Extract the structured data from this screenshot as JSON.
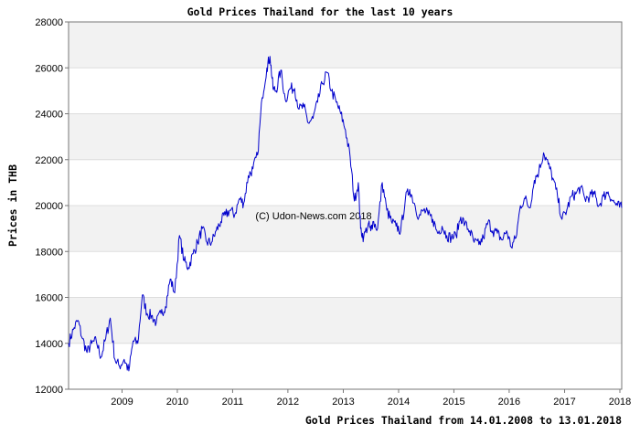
{
  "chart_data": {
    "type": "line",
    "title": "Gold Prices Thailand for the last 10 years",
    "xlabel": "Gold Prices Thailand from 14.01.2008 to 13.01.2018",
    "ylabel": "Prices in THB",
    "watermark": "(C) Udon-News.com 2018",
    "ylim": [
      12000,
      28000
    ],
    "yticks": [
      "12000",
      "14000",
      "16000",
      "18000",
      "20000",
      "22000",
      "24000",
      "26000",
      "28000"
    ],
    "xlim": [
      "2008-01-14",
      "2018-01-13"
    ],
    "xticks": [
      {
        "label": "2009",
        "date": "2009-01-01"
      },
      {
        "label": "2010",
        "date": "2010-01-01"
      },
      {
        "label": "2011",
        "date": "2011-01-01"
      },
      {
        "label": "2012",
        "date": "2012-01-01"
      },
      {
        "label": "2013",
        "date": "2013-01-01"
      },
      {
        "label": "2014",
        "date": "2014-01-01"
      },
      {
        "label": "2015",
        "date": "2015-01-01"
      },
      {
        "label": "2016",
        "date": "2016-01-01"
      },
      {
        "label": "2017",
        "date": "2017-01-01"
      },
      {
        "label": "2018",
        "date": "2018-01-01"
      }
    ],
    "grid": true,
    "line_color": "#0000cc",
    "band_colors": [
      "#f2f2f2",
      "#ffffff"
    ],
    "series": [
      {
        "x": [
          "2008-01-14",
          "2008-02-15",
          "2008-03-15",
          "2008-04-15",
          "2008-05-15",
          "2008-06-15",
          "2008-07-15",
          "2008-08-15",
          "2008-09-15",
          "2008-10-15",
          "2008-11-15",
          "2008-12-15",
          "2009-01-15",
          "2009-02-15",
          "2009-03-15",
          "2009-04-15",
          "2009-05-15",
          "2009-06-15",
          "2009-07-15",
          "2009-08-15",
          "2009-09-15",
          "2009-10-15",
          "2009-11-15",
          "2009-12-15",
          "2010-01-15",
          "2010-02-15",
          "2010-03-15",
          "2010-04-15",
          "2010-05-15",
          "2010-06-15",
          "2010-07-15",
          "2010-08-15",
          "2010-09-15",
          "2010-10-15",
          "2010-11-15",
          "2010-12-15",
          "2011-01-15",
          "2011-02-15",
          "2011-03-15",
          "2011-04-15",
          "2011-05-15",
          "2011-06-15",
          "2011-07-15",
          "2011-08-15",
          "2011-09-05",
          "2011-09-25",
          "2011-10-15",
          "2011-11-15",
          "2011-12-15",
          "2012-01-15",
          "2012-02-15",
          "2012-03-15",
          "2012-04-15",
          "2012-05-15",
          "2012-06-15",
          "2012-07-15",
          "2012-08-15",
          "2012-09-15",
          "2012-10-15",
          "2012-11-15",
          "2012-12-15",
          "2013-01-15",
          "2013-02-15",
          "2013-03-15",
          "2013-04-10",
          "2013-04-25",
          "2013-05-15",
          "2013-06-15",
          "2013-07-01",
          "2013-07-15",
          "2013-08-15",
          "2013-09-15",
          "2013-10-15",
          "2013-11-15",
          "2013-12-15",
          "2014-01-15",
          "2014-02-15",
          "2014-03-15",
          "2014-04-15",
          "2014-05-15",
          "2014-06-15",
          "2014-07-15",
          "2014-08-15",
          "2014-09-15",
          "2014-10-15",
          "2014-11-15",
          "2014-12-15",
          "2015-01-15",
          "2015-02-15",
          "2015-03-15",
          "2015-04-15",
          "2015-05-15",
          "2015-06-15",
          "2015-07-15",
          "2015-08-15",
          "2015-09-15",
          "2015-10-15",
          "2015-11-15",
          "2015-12-15",
          "2016-01-15",
          "2016-02-15",
          "2016-03-15",
          "2016-04-15",
          "2016-05-15",
          "2016-06-15",
          "2016-07-15",
          "2016-08-15",
          "2016-09-15",
          "2016-10-15",
          "2016-11-15",
          "2016-12-15",
          "2017-01-15",
          "2017-02-15",
          "2017-03-15",
          "2017-04-15",
          "2017-05-15",
          "2017-06-15",
          "2017-07-15",
          "2017-08-15",
          "2017-09-15",
          "2017-10-15",
          "2017-11-15",
          "2017-12-15",
          "2018-01-13"
        ],
        "y": [
          14000,
          14600,
          15000,
          14200,
          13600,
          14000,
          14100,
          13400,
          14200,
          15100,
          13300,
          13000,
          13300,
          12800,
          14100,
          14000,
          16100,
          15300,
          15200,
          14900,
          15300,
          15600,
          16800,
          16200,
          18700,
          17600,
          17300,
          17900,
          18400,
          19000,
          18400,
          18400,
          18900,
          19300,
          19600,
          19800,
          19600,
          20300,
          20100,
          21300,
          21600,
          22200,
          24700,
          26000,
          26500,
          25100,
          25000,
          25900,
          24600,
          25100,
          25100,
          24200,
          24300,
          23600,
          23800,
          24500,
          25300,
          25800,
          25000,
          24500,
          24000,
          23300,
          22100,
          20200,
          21000,
          19000,
          18600,
          19200,
          18900,
          19300,
          19000,
          21000,
          19800,
          19300,
          19100,
          18900,
          20300,
          20700,
          20100,
          19500,
          19800,
          19600,
          19400,
          18800,
          19100,
          18700,
          18600,
          18700,
          19500,
          19200,
          18900,
          18400,
          18300,
          18600,
          19300,
          18900,
          18800,
          18500,
          18900,
          18200,
          18600,
          20000,
          20300,
          19900,
          21100,
          21500,
          22300,
          21800,
          21200,
          20400,
          19400,
          19800,
          20400,
          20500,
          20800,
          20300,
          20400,
          20500,
          20000,
          20400,
          20600,
          20200,
          20000,
          19900
        ]
      }
    ]
  }
}
